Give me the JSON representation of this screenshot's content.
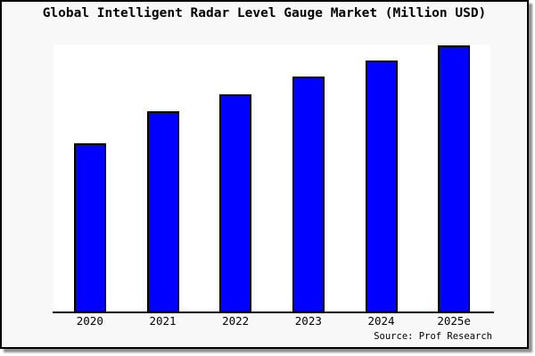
{
  "window": {
    "background_color": "#f8f8f8",
    "frame_color": "#000000",
    "page_background": "#ffffff",
    "shadow_color": "#8f8f8f"
  },
  "chart": {
    "title": "Global Intelligent Radar Level Gauge Market (Million USD)",
    "source": "Source: Prof Research"
  },
  "chart_data": {
    "type": "bar",
    "title": "Global Intelligent Radar Level Gauge Market (Million USD)",
    "categories": [
      "2020",
      "2021",
      "2022",
      "2023",
      "2024",
      "2025e"
    ],
    "values": [
      190,
      226,
      245,
      265,
      283,
      300
    ],
    "values_unit": "relative height (chart displays no numeric y-axis)",
    "xlabel": "",
    "ylabel": "",
    "ylim": [
      0,
      301
    ],
    "grid": false,
    "legend": false,
    "y_axis_visible": false,
    "bar_color": "#0000ff",
    "bar_border_color": "#000000",
    "plot_background": "#ffffff",
    "source": "Source: Prof Research"
  }
}
